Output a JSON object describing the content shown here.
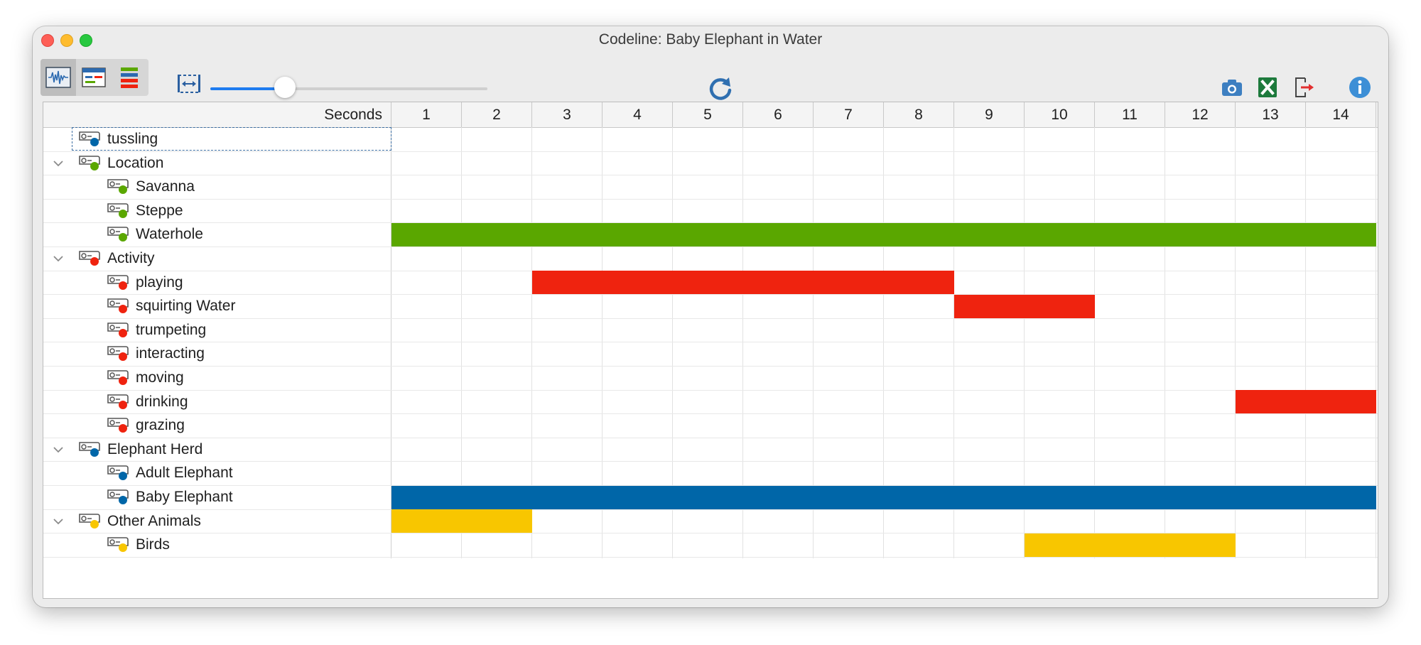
{
  "window": {
    "title": "Codeline: Baby Elephant in Water"
  },
  "toolbar": {
    "view_buttons": [
      {
        "icon": "waveform-icon",
        "active": true
      },
      {
        "icon": "document-view-icon",
        "active": false
      },
      {
        "icon": "color-bars-icon",
        "active": false
      }
    ],
    "zoom_fraction": 0.27,
    "right_tools": [
      "camera-icon",
      "excel-icon",
      "export-icon",
      "info-icon"
    ]
  },
  "colors": {
    "accent": "#1e7cf0",
    "blue": "#0066a8",
    "green": "#5aa700",
    "red": "#ef230f",
    "yellow": "#f8c600"
  },
  "timeline": {
    "unit_label": "Seconds",
    "seconds": [
      "1",
      "2",
      "3",
      "4",
      "5",
      "6",
      "7",
      "8",
      "9",
      "10",
      "11",
      "12",
      "13",
      "14"
    ],
    "rows": [
      {
        "label": "tussling",
        "level": 0,
        "expandable": false,
        "color": "blue",
        "selected": true
      },
      {
        "label": "Location",
        "level": 0,
        "expandable": true,
        "color": "green"
      },
      {
        "label": "Savanna",
        "level": 1,
        "expandable": false,
        "color": "green"
      },
      {
        "label": "Steppe",
        "level": 1,
        "expandable": false,
        "color": "green"
      },
      {
        "label": "Waterhole",
        "level": 1,
        "expandable": false,
        "color": "green"
      },
      {
        "label": "Activity",
        "level": 0,
        "expandable": true,
        "color": "red"
      },
      {
        "label": "playing",
        "level": 1,
        "expandable": false,
        "color": "red"
      },
      {
        "label": "squirting Water",
        "level": 1,
        "expandable": false,
        "color": "red"
      },
      {
        "label": "trumpeting",
        "level": 1,
        "expandable": false,
        "color": "red"
      },
      {
        "label": "interacting",
        "level": 1,
        "expandable": false,
        "color": "red"
      },
      {
        "label": "moving",
        "level": 1,
        "expandable": false,
        "color": "red"
      },
      {
        "label": "drinking",
        "level": 1,
        "expandable": false,
        "color": "red"
      },
      {
        "label": "grazing",
        "level": 1,
        "expandable": false,
        "color": "red"
      },
      {
        "label": "Elephant Herd",
        "level": 0,
        "expandable": true,
        "color": "blue"
      },
      {
        "label": "Adult Elephant",
        "level": 1,
        "expandable": false,
        "color": "blue"
      },
      {
        "label": "Baby Elephant",
        "level": 1,
        "expandable": false,
        "color": "blue"
      },
      {
        "label": "Other Animals",
        "level": 0,
        "expandable": true,
        "color": "yellow"
      },
      {
        "label": "Birds",
        "level": 1,
        "expandable": false,
        "color": "yellow"
      }
    ],
    "segments": [
      {
        "row": 4,
        "start": 0,
        "end": 14,
        "color": "green"
      },
      {
        "row": 6,
        "start": 2,
        "end": 8,
        "color": "red"
      },
      {
        "row": 7,
        "start": 8,
        "end": 10,
        "color": "red"
      },
      {
        "row": 11,
        "start": 12,
        "end": 14,
        "color": "red"
      },
      {
        "row": 15,
        "start": 0,
        "end": 14,
        "color": "blue"
      },
      {
        "row": 16,
        "start": 0,
        "end": 2,
        "color": "yellow"
      },
      {
        "row": 17,
        "start": 9,
        "end": 12,
        "color": "yellow"
      }
    ]
  }
}
